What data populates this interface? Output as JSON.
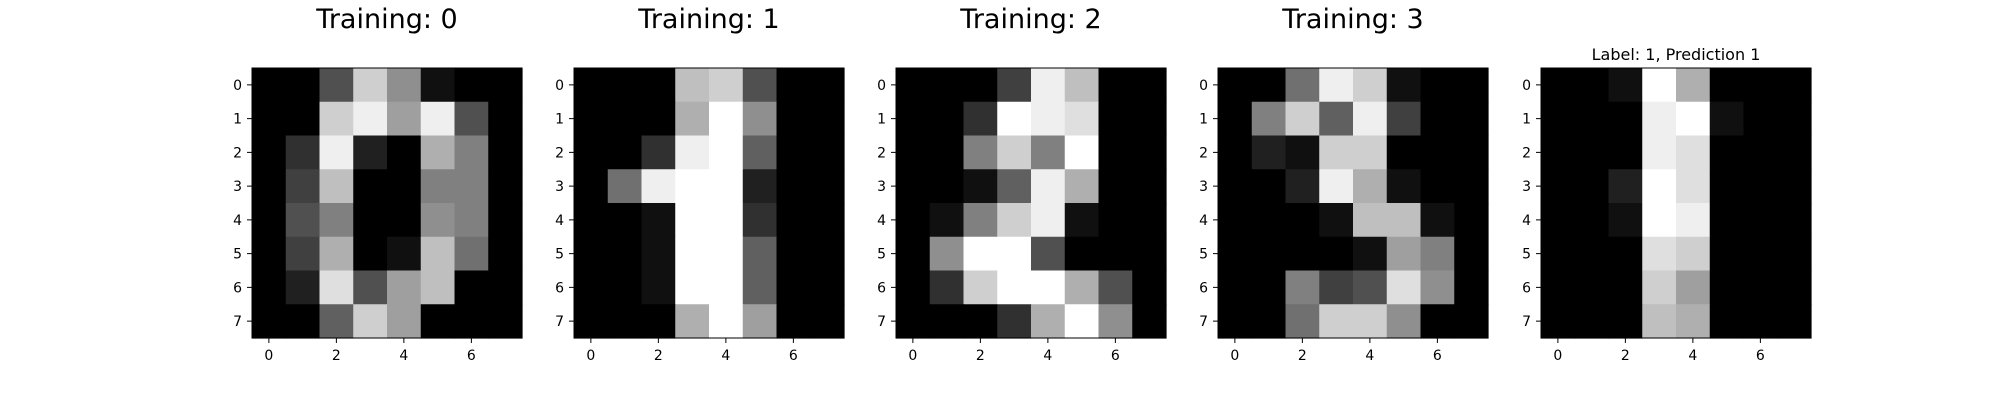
{
  "chart_data": [
    {
      "type": "heatmap",
      "title": "Training: 0",
      "colormap": "gray",
      "vmin": 0,
      "vmax": 16,
      "x_ticks": [
        "0",
        "2",
        "4",
        "6"
      ],
      "y_ticks": [
        "0",
        "1",
        "2",
        "3",
        "4",
        "5",
        "6",
        "7"
      ],
      "grid": false,
      "values": [
        [
          0,
          0,
          5,
          13,
          9,
          1,
          0,
          0
        ],
        [
          0,
          0,
          13,
          15,
          10,
          15,
          5,
          0
        ],
        [
          0,
          3,
          15,
          2,
          0,
          11,
          8,
          0
        ],
        [
          0,
          4,
          12,
          0,
          0,
          8,
          8,
          0
        ],
        [
          0,
          5,
          8,
          0,
          0,
          9,
          8,
          0
        ],
        [
          0,
          4,
          11,
          0,
          1,
          12,
          7,
          0
        ],
        [
          0,
          2,
          14,
          5,
          10,
          12,
          0,
          0
        ],
        [
          0,
          0,
          6,
          13,
          10,
          0,
          0,
          0
        ]
      ]
    },
    {
      "type": "heatmap",
      "title": "Training: 1",
      "colormap": "gray",
      "vmin": 0,
      "vmax": 16,
      "x_ticks": [
        "0",
        "2",
        "4",
        "6"
      ],
      "y_ticks": [
        "0",
        "1",
        "2",
        "3",
        "4",
        "5",
        "6",
        "7"
      ],
      "grid": false,
      "values": [
        [
          0,
          0,
          0,
          12,
          13,
          5,
          0,
          0
        ],
        [
          0,
          0,
          0,
          11,
          16,
          9,
          0,
          0
        ],
        [
          0,
          0,
          3,
          15,
          16,
          6,
          0,
          0
        ],
        [
          0,
          7,
          15,
          16,
          16,
          2,
          0,
          0
        ],
        [
          0,
          0,
          1,
          16,
          16,
          3,
          0,
          0
        ],
        [
          0,
          0,
          1,
          16,
          16,
          6,
          0,
          0
        ],
        [
          0,
          0,
          1,
          16,
          16,
          6,
          0,
          0
        ],
        [
          0,
          0,
          0,
          11,
          16,
          10,
          0,
          0
        ]
      ]
    },
    {
      "type": "heatmap",
      "title": "Training: 2",
      "colormap": "gray",
      "vmin": 0,
      "vmax": 16,
      "x_ticks": [
        "0",
        "2",
        "4",
        "6"
      ],
      "y_ticks": [
        "0",
        "1",
        "2",
        "3",
        "4",
        "5",
        "6",
        "7"
      ],
      "grid": false,
      "values": [
        [
          0,
          0,
          0,
          4,
          15,
          12,
          0,
          0
        ],
        [
          0,
          0,
          3,
          16,
          15,
          14,
          0,
          0
        ],
        [
          0,
          0,
          8,
          13,
          8,
          16,
          0,
          0
        ],
        [
          0,
          0,
          1,
          6,
          15,
          11,
          0,
          0
        ],
        [
          0,
          1,
          8,
          13,
          15,
          1,
          0,
          0
        ],
        [
          0,
          9,
          16,
          16,
          5,
          0,
          0,
          0
        ],
        [
          0,
          3,
          13,
          16,
          16,
          11,
          5,
          0
        ],
        [
          0,
          0,
          0,
          3,
          11,
          16,
          9,
          0
        ]
      ]
    },
    {
      "type": "heatmap",
      "title": "Training: 3",
      "colormap": "gray",
      "vmin": 0,
      "vmax": 16,
      "x_ticks": [
        "0",
        "2",
        "4",
        "6"
      ],
      "y_ticks": [
        "0",
        "1",
        "2",
        "3",
        "4",
        "5",
        "6",
        "7"
      ],
      "grid": false,
      "values": [
        [
          0,
          0,
          7,
          15,
          13,
          1,
          0,
          0
        ],
        [
          0,
          8,
          13,
          6,
          15,
          4,
          0,
          0
        ],
        [
          0,
          2,
          1,
          13,
          13,
          0,
          0,
          0
        ],
        [
          0,
          0,
          2,
          15,
          11,
          1,
          0,
          0
        ],
        [
          0,
          0,
          0,
          1,
          12,
          12,
          1,
          0
        ],
        [
          0,
          0,
          0,
          0,
          1,
          10,
          8,
          0
        ],
        [
          0,
          0,
          8,
          4,
          5,
          14,
          9,
          0
        ],
        [
          0,
          0,
          7,
          13,
          13,
          9,
          0,
          0
        ]
      ]
    },
    {
      "type": "heatmap",
      "title": "Label: 1, Prediction 1",
      "colormap": "gray",
      "vmin": 0,
      "vmax": 16,
      "x_ticks": [
        "0",
        "2",
        "4",
        "6"
      ],
      "y_ticks": [
        "0",
        "1",
        "2",
        "3",
        "4",
        "5",
        "6",
        "7"
      ],
      "grid": false,
      "values": [
        [
          0,
          0,
          1,
          16,
          11,
          0,
          0,
          0
        ],
        [
          0,
          0,
          0,
          15,
          16,
          1,
          0,
          0
        ],
        [
          0,
          0,
          0,
          15,
          14,
          0,
          0,
          0
        ],
        [
          0,
          0,
          2,
          16,
          14,
          0,
          0,
          0
        ],
        [
          0,
          0,
          1,
          16,
          15,
          0,
          0,
          0
        ],
        [
          0,
          0,
          0,
          14,
          13,
          0,
          0,
          0
        ],
        [
          0,
          0,
          0,
          13,
          10,
          0,
          0,
          0
        ],
        [
          0,
          0,
          0,
          12,
          11,
          0,
          0,
          0
        ]
      ]
    }
  ]
}
